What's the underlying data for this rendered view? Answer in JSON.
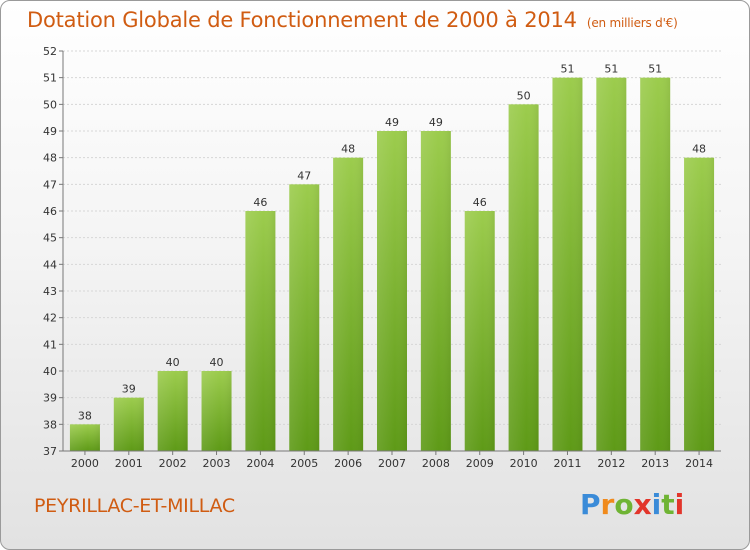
{
  "header": {
    "title": "Dotation Globale de Fonctionnement de 2000 à 2014",
    "unit": "(en milliers d'€)"
  },
  "footer": {
    "commune": "PEYRILLAC-ET-MILLAC",
    "brand": "Proxiti"
  },
  "colors": {
    "title": "#d05c12",
    "bar_top": "#9ccc4d",
    "bar_bottom": "#5e9a17",
    "brand_letters": [
      "#3a8bd8",
      "#f08a1c",
      "#6fb434",
      "#e2352b",
      "#3a8bd8",
      "#6fb434",
      "#e2352b"
    ]
  },
  "chart_data": {
    "type": "bar",
    "title": "Dotation Globale de Fonctionnement de 2000 à 2014",
    "subtitle": "(en milliers d'€)",
    "categories": [
      "2000",
      "2001",
      "2002",
      "2003",
      "2004",
      "2005",
      "2006",
      "2007",
      "2008",
      "2009",
      "2010",
      "2011",
      "2012",
      "2013",
      "2014"
    ],
    "values": [
      38,
      39,
      40,
      40,
      46,
      47,
      48,
      49,
      49,
      46,
      50,
      51,
      51,
      51,
      48
    ],
    "ylim": [
      37,
      52
    ],
    "yticks": [
      37,
      38,
      39,
      40,
      41,
      42,
      43,
      44,
      45,
      46,
      47,
      48,
      49,
      50,
      51,
      52
    ],
    "grid": true,
    "legend": "none"
  }
}
